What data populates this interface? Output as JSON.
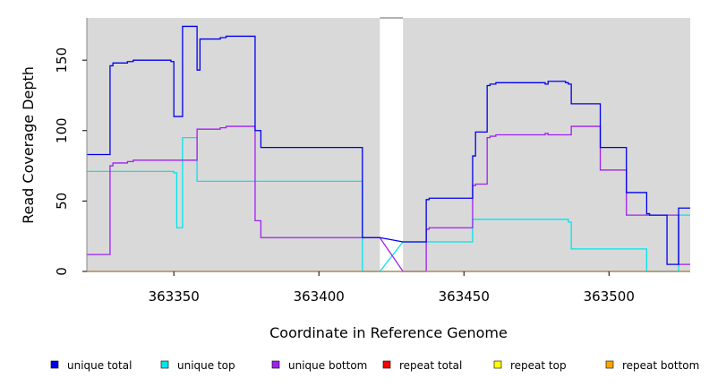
{
  "chart_data": {
    "type": "line",
    "xlabel": "Coordinate in Reference Genome",
    "ylabel": "Read Coverage Depth",
    "xlim": [
      363320,
      363528
    ],
    "ylim": [
      0,
      180
    ],
    "x_ticks": [
      363350,
      363400,
      363450,
      363500
    ],
    "x_tick_labels": [
      "363350",
      "363400",
      "363450",
      "363500"
    ],
    "y_ticks": [
      0,
      50,
      100,
      150
    ],
    "y_tick_labels": [
      "0",
      "50",
      "100",
      "150"
    ],
    "grid": false,
    "background": "#d9d9d9",
    "panels": [
      [
        363320,
        363421
      ],
      [
        363429,
        363528
      ]
    ],
    "legend_position": "bottom",
    "series": [
      {
        "name": "unique total",
        "color": "#0000ee",
        "x": [
          363320,
          363328,
          363328,
          363329,
          363329,
          363334,
          363334,
          363336,
          363336,
          363349,
          363349,
          363350,
          363350,
          363353,
          363353,
          363358,
          363358,
          363359,
          363359,
          363366,
          363366,
          363368,
          363368,
          363378,
          363378,
          363380,
          363380,
          363415,
          363415,
          363421,
          363429,
          363437,
          363437,
          363438,
          363438,
          363453,
          363453,
          363454,
          363454,
          363458,
          363458,
          363459,
          363459,
          363461,
          363461,
          363478,
          363478,
          363479,
          363479,
          363485,
          363485,
          363486,
          363486,
          363487,
          363487,
          363497,
          363497,
          363506,
          363506,
          363513,
          363513,
          363514,
          363514,
          363520,
          363520,
          363524,
          363524,
          363528
        ],
        "values": [
          83,
          83,
          146,
          146,
          148,
          148,
          149,
          149,
          150,
          150,
          149,
          149,
          110,
          110,
          174,
          174,
          143,
          143,
          165,
          165,
          166,
          166,
          167,
          167,
          100,
          100,
          88,
          88,
          24,
          24,
          21,
          21,
          51,
          51,
          52,
          52,
          82,
          82,
          99,
          99,
          132,
          132,
          133,
          133,
          134,
          134,
          133,
          133,
          135,
          135,
          134,
          134,
          133,
          133,
          119,
          119,
          88,
          88,
          56,
          56,
          41,
          41,
          40,
          40,
          5,
          5,
          45,
          45
        ]
      },
      {
        "name": "unique top",
        "color": "#00e5ee",
        "x": [
          363320,
          363350,
          363350,
          363351,
          363351,
          363353,
          363353,
          363358,
          363358,
          363415,
          363415,
          363421,
          363429,
          363453,
          363453,
          363486,
          363486,
          363487,
          363487,
          363513,
          363513,
          363524,
          363524,
          363528
        ],
        "values": [
          71,
          71,
          70,
          70,
          31,
          31,
          95,
          95,
          64,
          64,
          0,
          0,
          21,
          21,
          37,
          37,
          35,
          35,
          16,
          16,
          0,
          0,
          40,
          40
        ]
      },
      {
        "name": "unique bottom",
        "color": "#a020f0",
        "x": [
          363320,
          363328,
          363328,
          363329,
          363329,
          363334,
          363334,
          363336,
          363336,
          363358,
          363358,
          363366,
          363366,
          363368,
          363368,
          363378,
          363378,
          363380,
          363380,
          363421,
          363429,
          363437,
          363437,
          363438,
          363438,
          363453,
          363453,
          363454,
          363454,
          363458,
          363458,
          363459,
          363459,
          363461,
          363461,
          363478,
          363478,
          363479,
          363479,
          363487,
          363487,
          363497,
          363497,
          363506,
          363506,
          363524,
          363524,
          363528
        ],
        "values": [
          12,
          12,
          75,
          75,
          77,
          77,
          78,
          78,
          79,
          79,
          101,
          101,
          102,
          102,
          103,
          103,
          36,
          36,
          24,
          24,
          0,
          0,
          30,
          30,
          31,
          31,
          61,
          61,
          62,
          62,
          95,
          95,
          96,
          96,
          97,
          97,
          98,
          98,
          97,
          97,
          103,
          103,
          72,
          72,
          40,
          40,
          5,
          5
        ]
      },
      {
        "name": "repeat total",
        "color": "#ff0000",
        "x": [
          363320,
          363421,
          363429,
          363528
        ],
        "values": [
          0,
          0,
          0,
          0
        ]
      },
      {
        "name": "repeat top",
        "color": "#ffff00",
        "x": [
          363320,
          363421,
          363429,
          363528
        ],
        "values": [
          0,
          0,
          0,
          0
        ]
      },
      {
        "name": "repeat bottom",
        "color": "#ffa500",
        "x": [
          363320,
          363421,
          363429,
          363528
        ],
        "values": [
          0,
          0,
          0,
          0
        ]
      }
    ]
  }
}
